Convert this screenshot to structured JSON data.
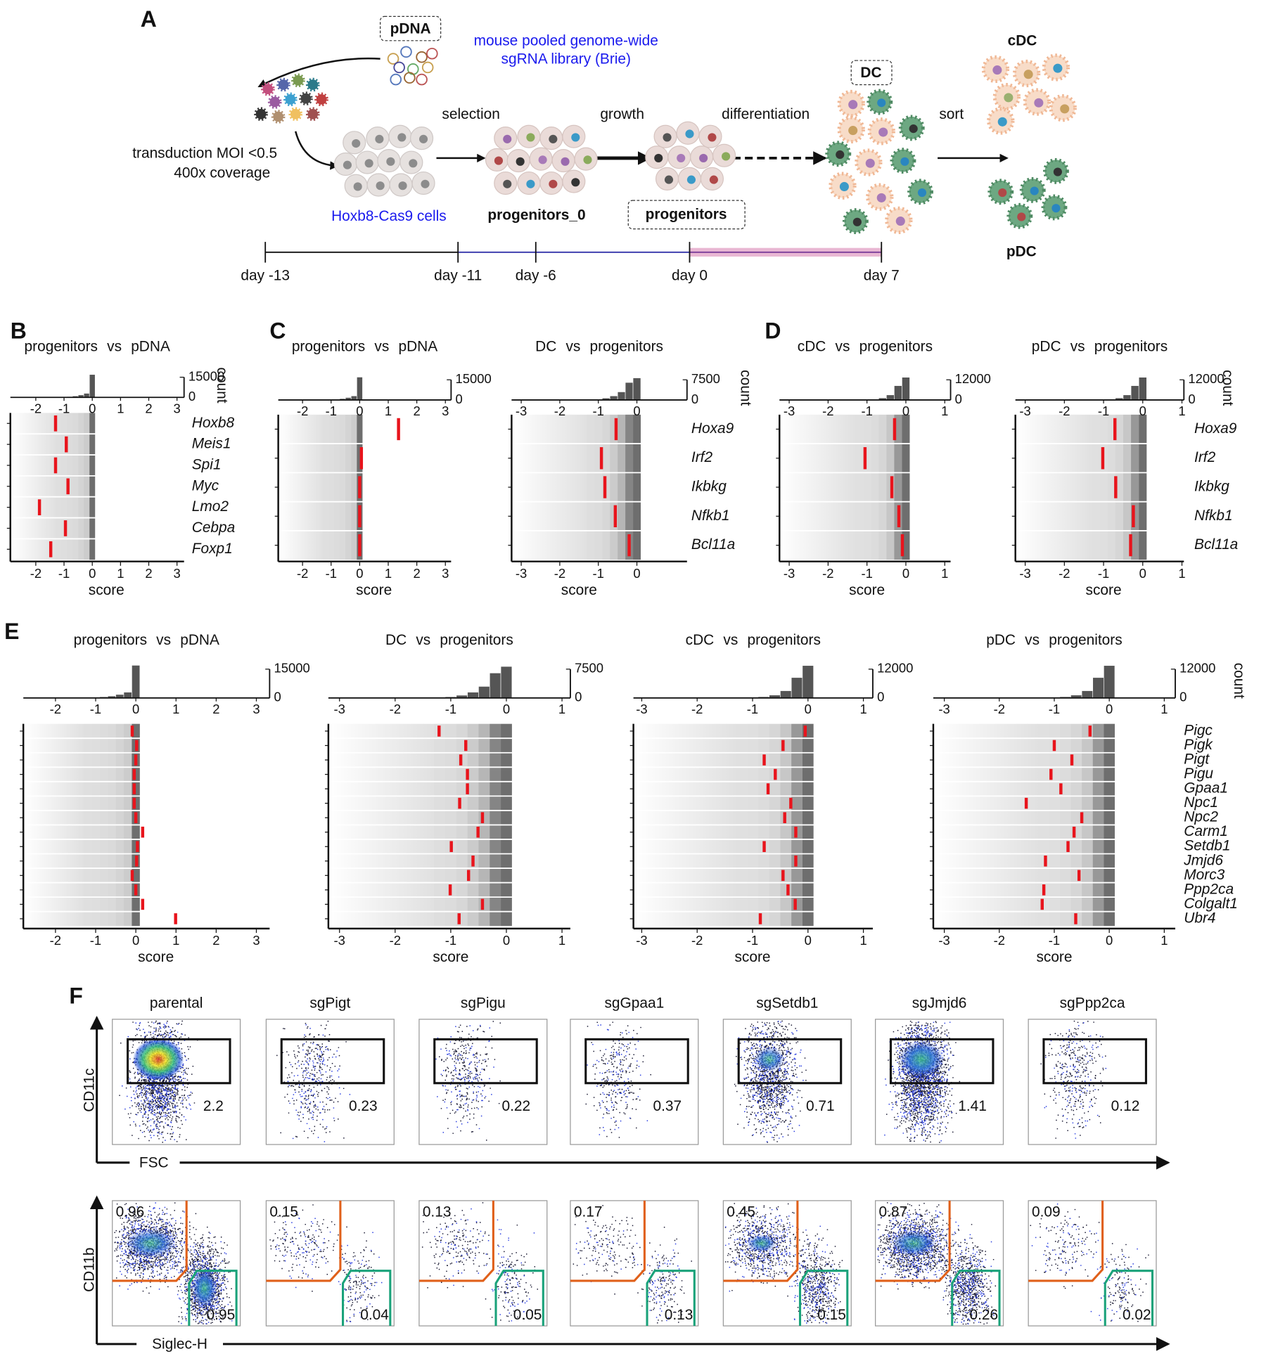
{
  "panel_a": {
    "label": "A",
    "pdna": "pDNA",
    "library": [
      "mouse pooled genome-wide",
      "sgRNA library (Brie)"
    ],
    "transduction": [
      "transduction MOI <0.5",
      "400x coverage"
    ],
    "cells": "Hoxb8-Cas9 cells",
    "steps": [
      "selection",
      "growth",
      "differentiation",
      "sort"
    ],
    "stages": [
      "progenitors_0",
      "progenitors",
      "DC",
      "cDC",
      "pDC"
    ],
    "timeline": [
      "day -13",
      "day -11",
      "day -6",
      "day 0",
      "day 7"
    ]
  },
  "screens": [
    {
      "label": "B",
      "count_label": "count",
      "genes": [
        "Hoxb8",
        "Meis1",
        "Spi1",
        "Myc",
        "Lmo2",
        "Cebpa",
        "Foxp1"
      ],
      "plots": [
        {
          "title": "progenitors vs pDNA",
          "xlim": [
            -2.9,
            3.25
          ],
          "xticks": [
            -2,
            -1,
            0,
            1,
            2,
            3
          ],
          "x_label": "score",
          "hist": {
            "bins": [
              -1.3,
              -1.1,
              -0.9,
              -0.7,
              -0.5,
              -0.3,
              -0.1,
              0.1
            ],
            "counts": [
              200,
              300,
              600,
              1000,
              1800,
              3000,
              17000
            ],
            "ylim": [
              0,
              18000
            ],
            "yticks": [
              0,
              15000
            ]
          },
          "scores": [
            -1.3,
            -0.92,
            -1.3,
            -0.86,
            -1.87,
            -0.95,
            -1.47
          ]
        }
      ]
    },
    {
      "label": "C",
      "count_label": "count",
      "genes": [
        "Hoxa9",
        "Irf2",
        "Ikbkg",
        "Nfkb1",
        "Bcl11a"
      ],
      "plots": [
        {
          "title": "progenitors vs pDNA",
          "xlim": [
            -2.85,
            3.2
          ],
          "xticks": [
            -2,
            -1,
            0,
            1,
            2,
            3
          ],
          "x_label": "score",
          "hist": {
            "bins": [
              -1.3,
              -1.1,
              -0.9,
              -0.7,
              -0.5,
              -0.3,
              -0.1,
              0.1
            ],
            "counts": [
              200,
              300,
              600,
              1000,
              1800,
              3000,
              17000
            ],
            "ylim": [
              0,
              18000
            ],
            "yticks": [
              0,
              15000
            ]
          },
          "scores": [
            1.36,
            0.06,
            0.0,
            0.0,
            0.0
          ]
        },
        {
          "title": "DC vs progenitors",
          "xlim": [
            -3.25,
            1.3
          ],
          "xticks": [
            -3,
            -2,
            -1,
            0
          ],
          "x_label": "score",
          "hist": {
            "bins": [
              -1.3,
              -1.1,
              -0.9,
              -0.7,
              -0.5,
              -0.3,
              -0.1,
              0.1
            ],
            "counts": [
              150,
              300,
              700,
              1500,
              3000,
              6500,
              8200
            ],
            "ylim": [
              0,
              9000
            ],
            "yticks": [
              0,
              7500
            ]
          },
          "scores": [
            -0.54,
            -0.92,
            -0.83,
            -0.56,
            -0.2
          ]
        }
      ]
    },
    {
      "label": "D",
      "count_label": "count",
      "genes": [
        "Hoxa9",
        "Irf2",
        "Ikbkg",
        "Nfkb1",
        "Bcl11a"
      ],
      "plots": [
        {
          "title": "cDC vs progenitors",
          "xlim": [
            -3.25,
            1.15
          ],
          "xticks": [
            -3,
            -2,
            -1,
            0,
            1
          ],
          "x_label": "score",
          "hist": {
            "bins": [
              -1.3,
              -1.1,
              -0.9,
              -0.7,
              -0.5,
              -0.3,
              -0.1,
              0.1
            ],
            "counts": [
              100,
              200,
              500,
              1200,
              3000,
              8500,
              13500
            ],
            "ylim": [
              0,
              14400
            ],
            "yticks": [
              0,
              12000
            ]
          },
          "scores": [
            -0.29,
            -1.05,
            -0.36,
            -0.18,
            -0.09
          ]
        },
        {
          "title": "pDC vs progenitors",
          "xlim": [
            -3.25,
            1.05
          ],
          "xticks": [
            -3,
            -2,
            -1,
            0,
            1
          ],
          "x_label": "score",
          "hist": {
            "bins": [
              -1.3,
              -1.1,
              -0.9,
              -0.7,
              -0.5,
              -0.3,
              -0.1,
              0.1
            ],
            "counts": [
              100,
              200,
              500,
              1200,
              3000,
              8500,
              13500
            ],
            "ylim": [
              0,
              14400
            ],
            "yticks": [
              0,
              12000
            ]
          },
          "scores": [
            -0.71,
            -1.02,
            -0.69,
            -0.24,
            -0.31
          ]
        }
      ]
    },
    {
      "label": "E",
      "count_label": "count",
      "genes": [
        "Pigc",
        "Pigk",
        "Pigt",
        "Pigu",
        "Gpaa1",
        "Npc1",
        "Npc2",
        "Carm1",
        "Setdb1",
        "Jmjd6",
        "Morc3",
        "Ppp2ca",
        "Colgalt1",
        "Ubr4"
      ],
      "plots": [
        {
          "title": "progenitors vs pDNA",
          "xlim": [
            -2.8,
            3.33
          ],
          "xticks": [
            -2,
            -1,
            0,
            1,
            2,
            3
          ],
          "x_label": "score",
          "hist": {
            "bins": [
              -1.3,
              -1.1,
              -0.9,
              -0.7,
              -0.5,
              -0.3,
              -0.1,
              0.1
            ],
            "counts": [
              200,
              300,
              600,
              1000,
              1800,
              3000,
              17000
            ],
            "ylim": [
              0,
              18000
            ],
            "yticks": [
              0,
              15000
            ]
          },
          "scores": [
            -0.09,
            0.02,
            0,
            -0.04,
            -0.04,
            -0.04,
            0,
            0.17,
            0.04,
            0.02,
            -0.09,
            0,
            0.17,
            0.99
          ]
        },
        {
          "title": "DC vs progenitors",
          "xlim": [
            -3.2,
            1.15
          ],
          "xticks": [
            -3,
            -2,
            -1,
            0,
            1
          ],
          "x_label": "score",
          "hist": {
            "bins": [
              -1.3,
              -1.1,
              -0.9,
              -0.7,
              -0.5,
              -0.3,
              -0.1,
              0.1
            ],
            "counts": [
              150,
              300,
              700,
              1500,
              3000,
              6500,
              8200
            ],
            "ylim": [
              0,
              9000
            ],
            "yticks": [
              0,
              7500
            ]
          },
          "scores": [
            -1.21,
            -0.73,
            -0.82,
            -0.7,
            -0.7,
            -0.84,
            -0.43,
            -0.51,
            -0.99,
            -0.6,
            -0.68,
            -1.01,
            -0.43,
            -0.85
          ]
        },
        {
          "title": "cDC vs progenitors",
          "xlim": [
            -3.15,
            1.17
          ],
          "xticks": [
            -3,
            -2,
            -1,
            0,
            1
          ],
          "x_label": "score",
          "hist": {
            "bins": [
              -1.3,
              -1.1,
              -0.9,
              -0.7,
              -0.5,
              -0.3,
              -0.1,
              0.1
            ],
            "counts": [
              100,
              200,
              500,
              1200,
              3000,
              8500,
              13500
            ],
            "ylim": [
              0,
              14400
            ],
            "yticks": [
              0,
              12000
            ]
          },
          "scores": [
            -0.05,
            -0.45,
            -0.79,
            -0.59,
            -0.72,
            -0.31,
            -0.42,
            -0.22,
            -0.79,
            -0.22,
            -0.45,
            -0.36,
            -0.23,
            -0.86
          ]
        },
        {
          "title": "pDC vs progenitors",
          "xlim": [
            -3.2,
            1.2
          ],
          "xticks": [
            -3,
            -2,
            -1,
            0,
            1
          ],
          "x_label": "score",
          "hist": {
            "bins": [
              -1.3,
              -1.1,
              -0.9,
              -0.7,
              -0.5,
              -0.3,
              -0.1,
              0.1
            ],
            "counts": [
              100,
              200,
              500,
              1200,
              3000,
              8500,
              13500
            ],
            "ylim": [
              0,
              14400
            ],
            "yticks": [
              0,
              12000
            ]
          },
          "scores": [
            -0.35,
            -1.0,
            -0.68,
            -1.06,
            -0.88,
            -1.51,
            -0.5,
            -0.64,
            -0.75,
            -1.16,
            -0.55,
            -1.19,
            -1.22,
            -0.61
          ]
        }
      ]
    }
  ],
  "flow": {
    "label": "F",
    "samples": [
      "parental",
      "sgPigt",
      "sgPigu",
      "sgGpaa1",
      "sgSetdb1",
      "sgJmjd6",
      "sgPpp2ca"
    ],
    "cd11c_gate": [
      "2.2",
      "0.23",
      "0.22",
      "0.37",
      "0.71",
      "1.41",
      "0.12"
    ],
    "cd11b_gate": [
      "0.96",
      "0.15",
      "0.13",
      "0.17",
      "0.45",
      "0.87",
      "0.09"
    ],
    "siglech_gate": [
      "0.95",
      "0.04",
      "0.05",
      "0.13",
      "0.15",
      "0.26",
      "0.02"
    ],
    "axes": {
      "cd11c": "CD11c",
      "fsc": "FSC",
      "cd11b": "CD11b",
      "siglech": "Siglec-H"
    }
  }
}
